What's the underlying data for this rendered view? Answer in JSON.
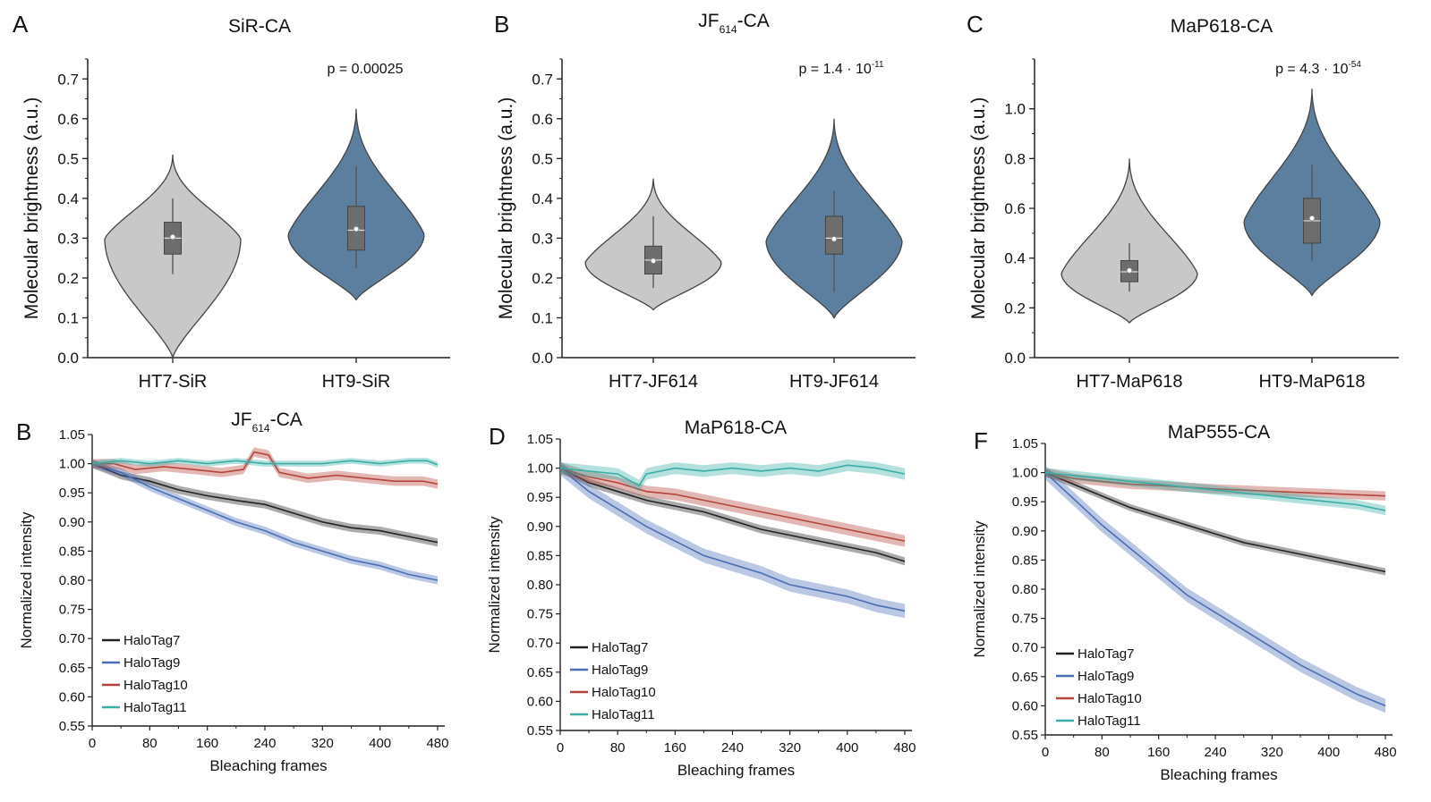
{
  "violin_panels": [
    {
      "letter": "A",
      "title": "SiR-CA",
      "p_text": "p = 0.00025",
      "ylabel": "Molecular brightness (a.u.)",
      "ylim": [
        0.0,
        0.75
      ],
      "yticks": [
        "0.0",
        "0.1",
        "0.2",
        "0.3",
        "0.4",
        "0.5",
        "0.6",
        "0.7"
      ],
      "groups": [
        {
          "name": "HT7-SiR",
          "color": "#c8c8c8",
          "min": 0.0,
          "max": 0.51,
          "mode": 0.3,
          "q1": 0.26,
          "median": 0.3,
          "q3": 0.34,
          "wlo": 0.21,
          "whi": 0.4,
          "mean": 0.303
        },
        {
          "name": "HT9-SiR",
          "color": "#5c7fa0",
          "min": 0.145,
          "max": 0.625,
          "mode": 0.31,
          "q1": 0.27,
          "median": 0.32,
          "q3": 0.38,
          "wlo": 0.225,
          "whi": 0.48,
          "mean": 0.323
        }
      ]
    },
    {
      "letter": "B",
      "title_main": "JF",
      "title_sub": "614",
      "title_tail": "-CA",
      "p_text": "p = 1.4 · 10",
      "p_exp": "-11",
      "ylabel": "Molecular brightness (a.u.)",
      "ylim": [
        0.0,
        0.75
      ],
      "yticks": [
        "0.0",
        "0.1",
        "0.2",
        "0.3",
        "0.4",
        "0.5",
        "0.6",
        "0.7"
      ],
      "groups": [
        {
          "name": "HT7-JF614",
          "color": "#c8c8c8",
          "min": 0.12,
          "max": 0.45,
          "mode": 0.24,
          "q1": 0.21,
          "median": 0.245,
          "q3": 0.28,
          "wlo": 0.175,
          "whi": 0.355,
          "mean": 0.243
        },
        {
          "name": "HT9-JF614",
          "color": "#5c7fa0",
          "min": 0.1,
          "max": 0.6,
          "mode": 0.295,
          "q1": 0.26,
          "median": 0.3,
          "q3": 0.355,
          "wlo": 0.165,
          "whi": 0.42,
          "mean": 0.298
        }
      ]
    },
    {
      "letter": "C",
      "title": "MaP618-CA",
      "p_text": "p = 4.3 · 10",
      "p_exp": "-54",
      "ylabel": "Molecular brightness (a.u.)",
      "ylim": [
        0.0,
        1.2
      ],
      "yticks": [
        "0.0",
        "0.2",
        "0.4",
        "0.6",
        "0.8",
        "1.0"
      ],
      "groups": [
        {
          "name": "HT7-MaP618",
          "color": "#c8c8c8",
          "min": 0.14,
          "max": 0.8,
          "mode": 0.34,
          "q1": 0.305,
          "median": 0.345,
          "q3": 0.39,
          "wlo": 0.265,
          "whi": 0.46,
          "mean": 0.35
        },
        {
          "name": "HT9-MaP618",
          "color": "#5c7fa0",
          "min": 0.25,
          "max": 1.08,
          "mode": 0.55,
          "q1": 0.46,
          "median": 0.55,
          "q3": 0.64,
          "wlo": 0.39,
          "whi": 0.775,
          "mean": 0.56
        }
      ]
    }
  ],
  "line_panels": [
    {
      "letter": "B",
      "title_main": "JF",
      "title_sub": "614",
      "title_tail": "-CA",
      "ylabel": "Normalized intensity",
      "xlabel": "Bleaching frames",
      "xlim": [
        0,
        490
      ],
      "ylim": [
        0.55,
        1.05
      ],
      "xticks": [
        "0",
        "80",
        "160",
        "240",
        "320",
        "400",
        "480"
      ],
      "yticks": [
        "0.55",
        "0.60",
        "0.65",
        "0.70",
        "0.75",
        "0.80",
        "0.85",
        "0.90",
        "0.95",
        "1.00",
        "1.05"
      ],
      "series": [
        {
          "name": "HaloTag7",
          "color": "#222222",
          "band": 0.007,
          "points": [
            [
              0,
              1.0
            ],
            [
              40,
              0.98
            ],
            [
              80,
              0.97
            ],
            [
              120,
              0.955
            ],
            [
              160,
              0.945
            ],
            [
              200,
              0.937
            ],
            [
              240,
              0.93
            ],
            [
              280,
              0.915
            ],
            [
              320,
              0.9
            ],
            [
              360,
              0.89
            ],
            [
              400,
              0.885
            ],
            [
              440,
              0.875
            ],
            [
              480,
              0.865
            ]
          ]
        },
        {
          "name": "HaloTag9",
          "color": "#4a6fb5",
          "band": 0.007,
          "points": [
            [
              0,
              1.0
            ],
            [
              40,
              0.985
            ],
            [
              80,
              0.96
            ],
            [
              120,
              0.94
            ],
            [
              160,
              0.92
            ],
            [
              200,
              0.9
            ],
            [
              240,
              0.885
            ],
            [
              280,
              0.865
            ],
            [
              320,
              0.85
            ],
            [
              360,
              0.835
            ],
            [
              400,
              0.825
            ],
            [
              440,
              0.81
            ],
            [
              480,
              0.8
            ]
          ]
        },
        {
          "name": "HaloTag10",
          "color": "#b5443a",
          "band": 0.008,
          "points": [
            [
              0,
              1.0
            ],
            [
              30,
              1.0
            ],
            [
              60,
              0.99
            ],
            [
              100,
              0.995
            ],
            [
              140,
              0.99
            ],
            [
              180,
              0.985
            ],
            [
              210,
              0.99
            ],
            [
              225,
              1.02
            ],
            [
              245,
              1.015
            ],
            [
              260,
              0.985
            ],
            [
              300,
              0.975
            ],
            [
              340,
              0.98
            ],
            [
              380,
              0.975
            ],
            [
              420,
              0.97
            ],
            [
              460,
              0.97
            ],
            [
              480,
              0.965
            ]
          ]
        },
        {
          "name": "HaloTag11",
          "color": "#3aada8",
          "band": 0.005,
          "points": [
            [
              0,
              1.0
            ],
            [
              40,
              1.005
            ],
            [
              80,
              1.0
            ],
            [
              120,
              1.005
            ],
            [
              160,
              1.0
            ],
            [
              200,
              1.005
            ],
            [
              240,
              1.0
            ],
            [
              280,
              1.0
            ],
            [
              320,
              1.0
            ],
            [
              360,
              1.005
            ],
            [
              400,
              1.0
            ],
            [
              440,
              1.005
            ],
            [
              465,
              1.005
            ],
            [
              480,
              0.998
            ]
          ]
        }
      ]
    },
    {
      "letter": "D",
      "title": "MaP618-CA",
      "ylabel": "Normalized intensity",
      "xlabel": "Bleaching frames",
      "xlim": [
        0,
        490
      ],
      "ylim": [
        0.55,
        1.05
      ],
      "xticks": [
        "0",
        "80",
        "160",
        "240",
        "320",
        "400",
        "480"
      ],
      "yticks": [
        "0.55",
        "0.60",
        "0.65",
        "0.70",
        "0.75",
        "0.80",
        "0.85",
        "0.90",
        "0.95",
        "1.00",
        "1.05"
      ],
      "series": [
        {
          "name": "HaloTag7",
          "color": "#222222",
          "band": 0.007,
          "points": [
            [
              0,
              1.0
            ],
            [
              40,
              0.975
            ],
            [
              80,
              0.96
            ],
            [
              120,
              0.945
            ],
            [
              160,
              0.935
            ],
            [
              200,
              0.925
            ],
            [
              240,
              0.91
            ],
            [
              280,
              0.895
            ],
            [
              320,
              0.885
            ],
            [
              360,
              0.875
            ],
            [
              400,
              0.865
            ],
            [
              440,
              0.855
            ],
            [
              480,
              0.84
            ]
          ]
        },
        {
          "name": "HaloTag9",
          "color": "#4a6fb5",
          "band": 0.012,
          "points": [
            [
              0,
              1.0
            ],
            [
              40,
              0.96
            ],
            [
              80,
              0.93
            ],
            [
              120,
              0.9
            ],
            [
              160,
              0.875
            ],
            [
              200,
              0.85
            ],
            [
              240,
              0.835
            ],
            [
              280,
              0.82
            ],
            [
              320,
              0.8
            ],
            [
              360,
              0.79
            ],
            [
              400,
              0.78
            ],
            [
              440,
              0.765
            ],
            [
              480,
              0.755
            ]
          ]
        },
        {
          "name": "HaloTag10",
          "color": "#b5443a",
          "band": 0.01,
          "points": [
            [
              0,
              1.0
            ],
            [
              40,
              0.985
            ],
            [
              80,
              0.975
            ],
            [
              120,
              0.96
            ],
            [
              160,
              0.955
            ],
            [
              200,
              0.945
            ],
            [
              240,
              0.935
            ],
            [
              280,
              0.925
            ],
            [
              320,
              0.915
            ],
            [
              360,
              0.905
            ],
            [
              400,
              0.895
            ],
            [
              440,
              0.885
            ],
            [
              480,
              0.875
            ]
          ]
        },
        {
          "name": "HaloTag11",
          "color": "#3aada8",
          "band": 0.01,
          "points": [
            [
              0,
              1.0
            ],
            [
              40,
              0.995
            ],
            [
              80,
              0.99
            ],
            [
              110,
              0.97
            ],
            [
              120,
              0.99
            ],
            [
              160,
              1.0
            ],
            [
              200,
              0.995
            ],
            [
              240,
              1.0
            ],
            [
              280,
              0.995
            ],
            [
              320,
              1.0
            ],
            [
              360,
              0.995
            ],
            [
              400,
              1.005
            ],
            [
              440,
              1.0
            ],
            [
              480,
              0.99
            ]
          ]
        }
      ]
    },
    {
      "letter": "F",
      "title": "MaP555-CA",
      "ylabel": "Normalized intensity",
      "xlabel": "Bleaching frames",
      "xlim": [
        0,
        490
      ],
      "ylim": [
        0.55,
        1.05
      ],
      "xticks": [
        "0",
        "80",
        "160",
        "240",
        "320",
        "400",
        "480"
      ],
      "yticks": [
        "0.55",
        "0.60",
        "0.65",
        "0.70",
        "0.75",
        "0.80",
        "0.85",
        "0.90",
        "0.95",
        "1.00",
        "1.05"
      ],
      "series": [
        {
          "name": "HaloTag7",
          "color": "#222222",
          "band": 0.006,
          "points": [
            [
              0,
              1.0
            ],
            [
              40,
              0.98
            ],
            [
              80,
              0.96
            ],
            [
              120,
              0.94
            ],
            [
              160,
              0.925
            ],
            [
              200,
              0.91
            ],
            [
              240,
              0.895
            ],
            [
              280,
              0.88
            ],
            [
              320,
              0.87
            ],
            [
              360,
              0.86
            ],
            [
              400,
              0.85
            ],
            [
              440,
              0.84
            ],
            [
              480,
              0.83
            ]
          ]
        },
        {
          "name": "HaloTag9",
          "color": "#4a6fb5",
          "band": 0.012,
          "points": [
            [
              0,
              1.0
            ],
            [
              40,
              0.955
            ],
            [
              80,
              0.91
            ],
            [
              120,
              0.87
            ],
            [
              160,
              0.83
            ],
            [
              200,
              0.79
            ],
            [
              240,
              0.76
            ],
            [
              280,
              0.73
            ],
            [
              320,
              0.7
            ],
            [
              360,
              0.67
            ],
            [
              400,
              0.645
            ],
            [
              440,
              0.62
            ],
            [
              480,
              0.6
            ]
          ]
        },
        {
          "name": "HaloTag10",
          "color": "#b5443a",
          "band": 0.008,
          "points": [
            [
              0,
              1.0
            ],
            [
              40,
              0.99
            ],
            [
              80,
              0.985
            ],
            [
              120,
              0.98
            ],
            [
              160,
              0.978
            ],
            [
              200,
              0.975
            ],
            [
              240,
              0.972
            ],
            [
              280,
              0.97
            ],
            [
              320,
              0.968
            ],
            [
              360,
              0.966
            ],
            [
              400,
              0.964
            ],
            [
              440,
              0.962
            ],
            [
              480,
              0.96
            ]
          ]
        },
        {
          "name": "HaloTag11",
          "color": "#3aada8",
          "band": 0.008,
          "points": [
            [
              0,
              1.0
            ],
            [
              40,
              0.995
            ],
            [
              80,
              0.99
            ],
            [
              120,
              0.985
            ],
            [
              160,
              0.98
            ],
            [
              200,
              0.975
            ],
            [
              240,
              0.97
            ],
            [
              280,
              0.965
            ],
            [
              320,
              0.96
            ],
            [
              360,
              0.955
            ],
            [
              400,
              0.95
            ],
            [
              440,
              0.945
            ],
            [
              480,
              0.935
            ]
          ]
        }
      ]
    }
  ]
}
